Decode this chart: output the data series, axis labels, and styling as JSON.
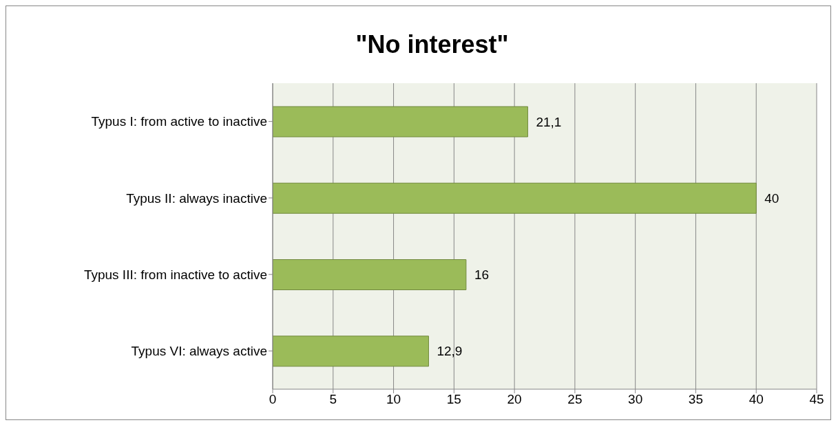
{
  "chart_data": {
    "type": "bar",
    "orientation": "horizontal",
    "title": "\"No interest\"",
    "categories": [
      "Typus I: from active to inactive",
      "Typus II: always inactive",
      "Typus III: from inactive to active",
      "Typus VI: always active"
    ],
    "values": [
      21.1,
      40,
      16,
      12.9
    ],
    "value_labels": [
      "21,1",
      "40",
      "16",
      "12,9"
    ],
    "color": "#9bbb59",
    "xlim": [
      0,
      45
    ],
    "xticks": [
      0,
      5,
      10,
      15,
      20,
      25,
      30,
      35,
      40,
      45
    ],
    "grid": "x",
    "legend": false
  }
}
